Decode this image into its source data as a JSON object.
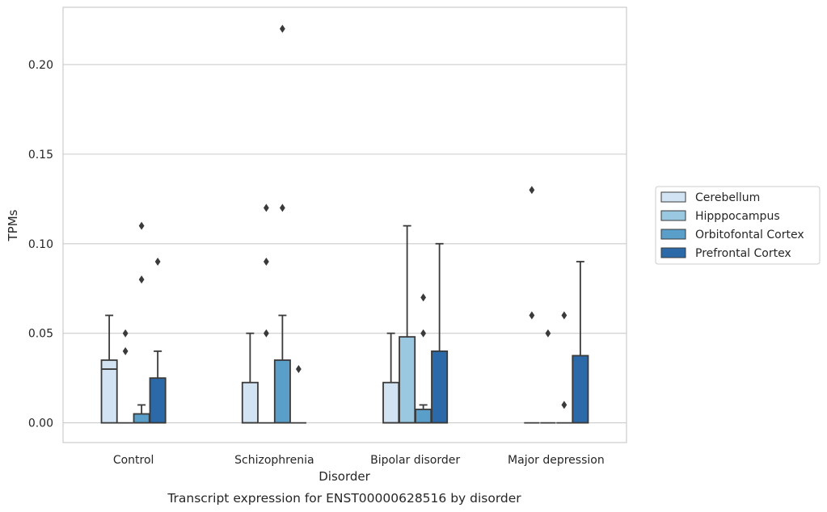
{
  "chart_data": {
    "type": "box",
    "caption": "Transcript expression for ENST00000628516 by disorder",
    "xlabel": "Disorder",
    "ylabel": "TPMs",
    "ylim": [
      -0.011,
      0.232
    ],
    "yticks": [
      0.0,
      0.05,
      0.1,
      0.15,
      0.2
    ],
    "ytick_labels": [
      "0.00",
      "0.05",
      "0.10",
      "0.15",
      "0.20"
    ],
    "grid": "horizontal",
    "legend_position": "right",
    "categories": [
      "Control",
      "Schizophrenia",
      "Bipolar disorder",
      "Major depression"
    ],
    "series": [
      {
        "name": "Cerebellum",
        "color": "#d2e3f3",
        "boxes": [
          {
            "q1": 0.0,
            "median": 0.03,
            "q3": 0.035,
            "whisker_low": 0.0,
            "whisker_high": 0.06,
            "outliers": []
          },
          {
            "q1": 0.0,
            "median": 0.0,
            "q3": 0.0225,
            "whisker_low": 0.0,
            "whisker_high": 0.05,
            "outliers": []
          },
          {
            "q1": 0.0,
            "median": 0.0,
            "q3": 0.0225,
            "whisker_low": 0.0,
            "whisker_high": 0.05,
            "outliers": []
          },
          {
            "q1": 0.0,
            "median": 0.0,
            "q3": 0.0,
            "whisker_low": 0.0,
            "whisker_high": 0.0,
            "outliers": [
              0.13,
              0.06
            ]
          }
        ]
      },
      {
        "name": "Hipppocampus",
        "color": "#9ac8e0",
        "boxes": [
          {
            "q1": 0.0,
            "median": 0.0,
            "q3": 0.0,
            "whisker_low": 0.0,
            "whisker_high": 0.0,
            "outliers": [
              0.05,
              0.04
            ]
          },
          {
            "q1": 0.0,
            "median": 0.0,
            "q3": 0.0,
            "whisker_low": 0.0,
            "whisker_high": 0.0,
            "outliers": [
              0.12,
              0.09,
              0.05
            ]
          },
          {
            "q1": 0.0,
            "median": 0.0,
            "q3": 0.048,
            "whisker_low": 0.0,
            "whisker_high": 0.11,
            "outliers": []
          },
          {
            "q1": 0.0,
            "median": 0.0,
            "q3": 0.0,
            "whisker_low": 0.0,
            "whisker_high": 0.0,
            "outliers": [
              0.05
            ]
          }
        ]
      },
      {
        "name": "Orbitofontal Cortex",
        "color": "#5a9fca",
        "boxes": [
          {
            "q1": 0.0,
            "median": 0.0,
            "q3": 0.005,
            "whisker_low": 0.0,
            "whisker_high": 0.01,
            "outliers": [
              0.11,
              0.08
            ]
          },
          {
            "q1": 0.0,
            "median": 0.0,
            "q3": 0.035,
            "whisker_low": 0.0,
            "whisker_high": 0.06,
            "outliers": [
              0.22,
              0.12
            ]
          },
          {
            "q1": 0.0,
            "median": 0.0,
            "q3": 0.0075,
            "whisker_low": 0.0,
            "whisker_high": 0.01,
            "outliers": [
              0.07,
              0.05
            ]
          },
          {
            "q1": 0.0,
            "median": 0.0,
            "q3": 0.0,
            "whisker_low": 0.0,
            "whisker_high": 0.0,
            "outliers": [
              0.06,
              0.01
            ]
          }
        ]
      },
      {
        "name": "Prefrontal Cortex",
        "color": "#2c69a8",
        "boxes": [
          {
            "q1": 0.0,
            "median": 0.0,
            "q3": 0.025,
            "whisker_low": 0.0,
            "whisker_high": 0.04,
            "outliers": [
              0.09
            ]
          },
          {
            "q1": 0.0,
            "median": 0.0,
            "q3": 0.0,
            "whisker_low": 0.0,
            "whisker_high": 0.0,
            "outliers": [
              0.03
            ]
          },
          {
            "q1": 0.0,
            "median": 0.0,
            "q3": 0.04,
            "whisker_low": 0.0,
            "whisker_high": 0.1,
            "outliers": []
          },
          {
            "q1": 0.0,
            "median": 0.0,
            "q3": 0.0375,
            "whisker_low": 0.0,
            "whisker_high": 0.09,
            "outliers": []
          }
        ]
      }
    ]
  }
}
